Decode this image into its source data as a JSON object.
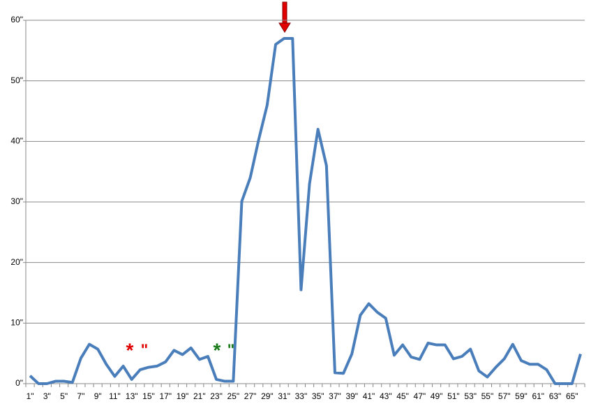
{
  "chart_data": {
    "type": "line",
    "categories": [
      "1\"",
      null,
      "3\"",
      null,
      "5\"",
      null,
      "7\"",
      null,
      "9\"",
      null,
      "11\"",
      null,
      "13\"",
      null,
      "15\"",
      null,
      "17\"",
      null,
      "19\"",
      null,
      "21\"",
      null,
      "23\"",
      null,
      "25\"",
      null,
      "27\"",
      null,
      "29\"",
      null,
      "31\"",
      null,
      "33\"",
      null,
      "35\"",
      null,
      "37\"",
      null,
      "39\"",
      null,
      "41\"",
      null,
      "43\"",
      null,
      "45\"",
      null,
      "47\"",
      null,
      "49\"",
      null,
      "51\"",
      null,
      "53\"",
      null,
      "55\"",
      null,
      "57\"",
      null,
      "59\"",
      null,
      "61\"",
      null,
      "63\"",
      null,
      "65\"",
      null
    ],
    "series": [
      {
        "color": "#4a7ebb",
        "values": [
          1.3,
          0,
          0,
          0.4,
          0.4,
          0.2,
          4.2,
          6.5,
          5.7,
          3.2,
          1.2,
          2.9,
          0.7,
          2.3,
          2.7,
          2.9,
          3.6,
          5.5,
          4.8,
          5.9,
          4.0,
          4.5,
          0.7,
          0.4,
          0.4,
          30.1,
          34,
          40.3,
          46,
          56,
          57,
          57,
          15.5,
          33,
          42,
          36,
          1.8,
          1.7,
          4.9,
          11.3,
          13.2,
          11.8,
          10.8,
          4.7,
          6.4,
          4.4,
          4.0,
          6.7,
          6.4,
          6.4,
          4.1,
          4.5,
          5.7,
          2.1,
          1.1,
          2.7,
          4.1,
          6.5,
          3.8,
          3.2,
          3.2,
          2.3,
          0,
          0,
          0,
          4.9
        ]
      }
    ],
    "ylim": [
      0,
      60
    ],
    "yticks": [
      {
        "value": 0,
        "label": "0\""
      },
      {
        "value": 10,
        "label": "10\""
      },
      {
        "value": 20,
        "label": "20\""
      },
      {
        "value": 30,
        "label": "30\""
      },
      {
        "value": 40,
        "label": "40\""
      },
      {
        "value": 50,
        "label": "50\""
      },
      {
        "value": 60,
        "label": "60\""
      }
    ],
    "grid": true,
    "annotations": [
      {
        "text": "*",
        "note": "\"",
        "color": "#e00000"
      },
      {
        "text": "*",
        "note": "\"",
        "color": "#1a7a1a"
      }
    ]
  }
}
